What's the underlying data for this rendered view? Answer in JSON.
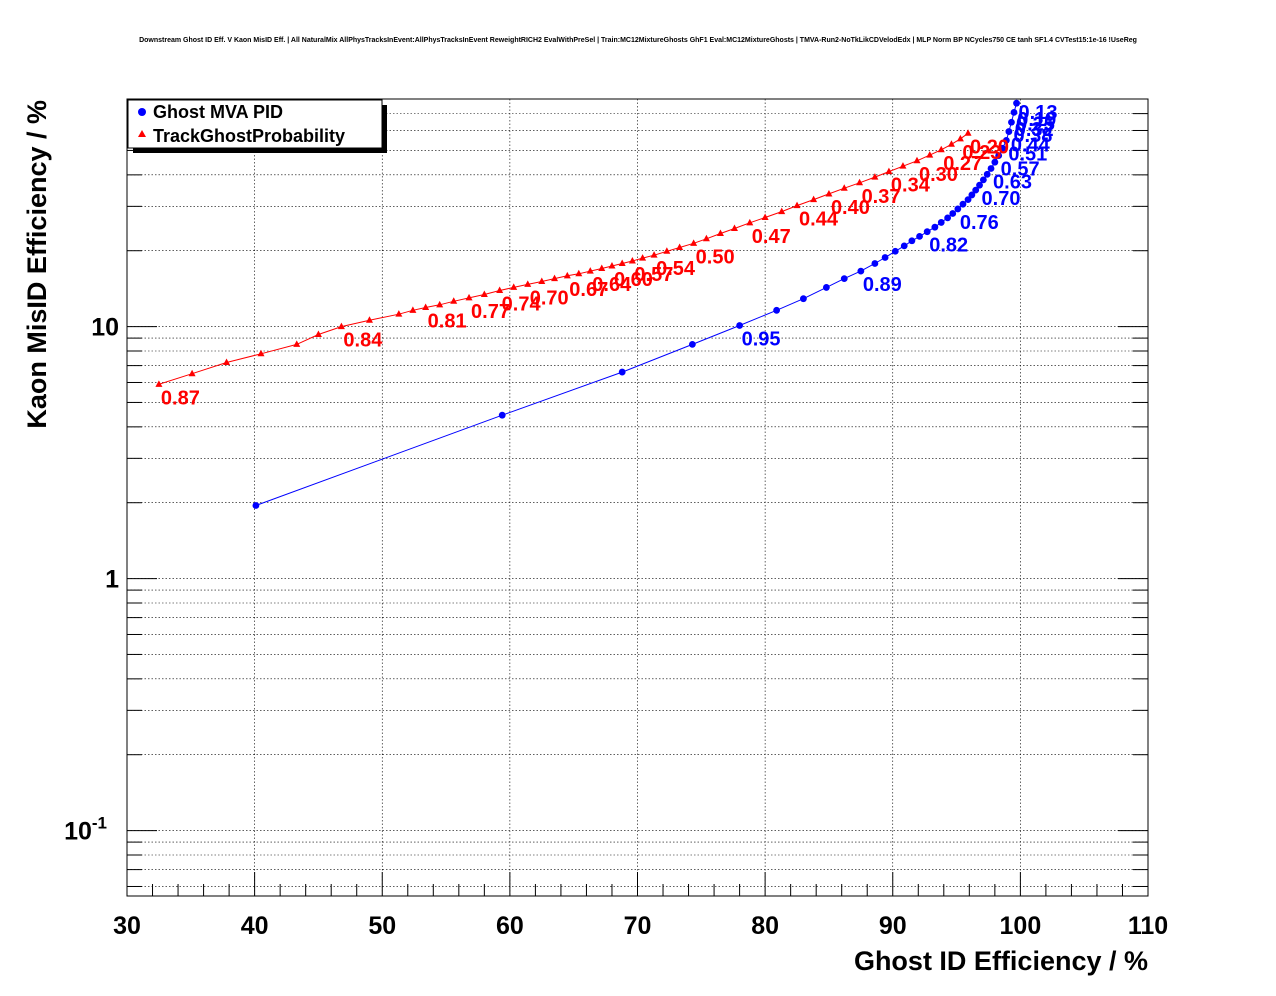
{
  "chart_data": {
    "type": "scatter",
    "title": "Downstream Ghost ID Eff. V Kaon MisID Eff. | All NaturalMix AllPhysTracksInEvent:AllPhysTracksInEvent ReweightRICH2 EvalWithPreSel | Train:MC12MixtureGhosts GhF1 Eval:MC12MixtureGhosts | TMVA-Run2-NoTkLikCDVelodEdx | MLP Norm BP NCycles750 CE tanh SF1.4 CVTest15:1e-16 !UseReg",
    "xlabel": "Ghost ID Efficiency / %",
    "ylabel": "Kaon MisID Efficiency / %",
    "xlim": [
      30,
      110
    ],
    "ylim": [
      0.055,
      80
    ],
    "yscale": "log",
    "grid": true,
    "legend_position": "top-left",
    "x_ticks": [
      "30",
      "40",
      "50",
      "60",
      "70",
      "80",
      "90",
      "100",
      "110"
    ],
    "y_ticks": [
      {
        "value": 0.1,
        "base": "10",
        "exp": "-1"
      },
      {
        "value": 1,
        "base": "1",
        "exp": ""
      },
      {
        "value": 10,
        "base": "10",
        "exp": ""
      }
    ],
    "series": [
      {
        "name": "Ghost MVA PID",
        "color": "#0000ff",
        "marker": "circle",
        "points": [
          [
            40.1,
            1.95
          ],
          [
            59.4,
            4.45
          ],
          [
            68.8,
            6.6
          ],
          [
            74.3,
            8.5
          ],
          [
            78.0,
            10.1
          ],
          [
            80.9,
            11.6
          ],
          [
            83.0,
            12.9
          ],
          [
            84.8,
            14.3
          ],
          [
            86.2,
            15.5
          ],
          [
            87.5,
            16.6
          ],
          [
            88.6,
            17.8
          ],
          [
            89.4,
            18.8
          ],
          [
            90.2,
            19.9
          ],
          [
            90.9,
            20.9
          ],
          [
            91.5,
            21.9
          ],
          [
            92.1,
            22.8
          ],
          [
            92.7,
            23.8
          ],
          [
            93.3,
            24.8
          ],
          [
            93.8,
            25.9
          ],
          [
            94.3,
            27.0
          ],
          [
            94.7,
            28.1
          ],
          [
            95.1,
            29.3
          ],
          [
            95.5,
            30.6
          ],
          [
            95.9,
            31.9
          ],
          [
            96.2,
            33.3
          ],
          [
            96.5,
            34.8
          ],
          [
            96.8,
            36.4
          ],
          [
            97.1,
            38.2
          ],
          [
            97.4,
            40.2
          ],
          [
            97.7,
            42.4
          ],
          [
            98.0,
            44.9
          ],
          [
            98.3,
            47.7
          ],
          [
            98.6,
            51.0
          ],
          [
            98.9,
            54.8
          ],
          [
            99.1,
            59.4
          ],
          [
            99.3,
            64.7
          ],
          [
            99.5,
            70.8
          ],
          [
            99.7,
            77.0
          ]
        ],
        "labels": [
          {
            "text": "0.95",
            "x": 78.0,
            "y": 10.1
          },
          {
            "text": "0.89",
            "x": 87.5,
            "y": 16.6
          },
          {
            "text": "0.82",
            "x": 92.7,
            "y": 23.8
          },
          {
            "text": "0.76",
            "x": 95.1,
            "y": 29.3
          },
          {
            "text": "0.70",
            "x": 96.8,
            "y": 36.4
          },
          {
            "text": "0.63",
            "x": 97.7,
            "y": 42.4
          },
          {
            "text": "0.57",
            "x": 98.3,
            "y": 47.7
          },
          {
            "text": "0.51",
            "x": 98.9,
            "y": 54.8
          },
          {
            "text": "0.44",
            "x": 99.1,
            "y": 59.4
          },
          {
            "text": "0.38",
            "x": 99.3,
            "y": 64.7
          },
          {
            "text": "0.32",
            "x": 99.4,
            "y": 68.5
          },
          {
            "text": "0.25",
            "x": 99.5,
            "y": 72.0
          },
          {
            "text": "0.19",
            "x": 99.6,
            "y": 75.0
          },
          {
            "text": "0.13",
            "x": 99.7,
            "y": 80.0
          }
        ]
      },
      {
        "name": "TrackGhostProbability",
        "color": "#ff0000",
        "marker": "triangle",
        "points": [
          [
            32.5,
            5.9
          ],
          [
            35.1,
            6.5
          ],
          [
            37.8,
            7.2
          ],
          [
            40.5,
            7.8
          ],
          [
            43.3,
            8.5
          ],
          [
            45.0,
            9.3
          ],
          [
            46.8,
            10.0
          ],
          [
            49.0,
            10.6
          ],
          [
            51.3,
            11.2
          ],
          [
            52.4,
            11.6
          ],
          [
            53.4,
            11.9
          ],
          [
            54.5,
            12.2
          ],
          [
            55.6,
            12.6
          ],
          [
            56.8,
            13.0
          ],
          [
            58.0,
            13.4
          ],
          [
            59.2,
            13.9
          ],
          [
            60.3,
            14.3
          ],
          [
            61.4,
            14.7
          ],
          [
            62.5,
            15.1
          ],
          [
            63.5,
            15.5
          ],
          [
            64.5,
            15.9
          ],
          [
            65.4,
            16.2
          ],
          [
            66.3,
            16.6
          ],
          [
            67.2,
            17.0
          ],
          [
            68.0,
            17.4
          ],
          [
            68.8,
            17.8
          ],
          [
            69.6,
            18.2
          ],
          [
            70.4,
            18.7
          ],
          [
            71.3,
            19.2
          ],
          [
            72.3,
            19.9
          ],
          [
            73.3,
            20.6
          ],
          [
            74.4,
            21.4
          ],
          [
            75.4,
            22.3
          ],
          [
            76.5,
            23.4
          ],
          [
            77.6,
            24.5
          ],
          [
            78.8,
            25.8
          ],
          [
            80.0,
            27.1
          ],
          [
            81.3,
            28.6
          ],
          [
            82.5,
            30.2
          ],
          [
            83.8,
            31.9
          ],
          [
            85.0,
            33.6
          ],
          [
            86.2,
            35.4
          ],
          [
            87.4,
            37.2
          ],
          [
            88.6,
            39.2
          ],
          [
            89.7,
            41.2
          ],
          [
            90.8,
            43.3
          ],
          [
            91.9,
            45.5
          ],
          [
            92.9,
            47.9
          ],
          [
            93.8,
            50.3
          ],
          [
            94.6,
            52.9
          ],
          [
            95.3,
            55.6
          ],
          [
            95.9,
            58.5
          ]
        ],
        "labels": [
          {
            "text": "0.87",
            "x": 32.5,
            "y": 5.9
          },
          {
            "text": "0.84",
            "x": 46.8,
            "y": 10.0
          },
          {
            "text": "0.81",
            "x": 53.4,
            "y": 11.9
          },
          {
            "text": "0.77",
            "x": 56.8,
            "y": 13.0
          },
          {
            "text": "0.74",
            "x": 59.2,
            "y": 13.9
          },
          {
            "text": "0.70",
            "x": 61.4,
            "y": 14.7
          },
          {
            "text": "0.67",
            "x": 64.5,
            "y": 15.9
          },
          {
            "text": "0.64",
            "x": 66.3,
            "y": 16.6
          },
          {
            "text": "0.60",
            "x": 68.0,
            "y": 17.4
          },
          {
            "text": "0.57",
            "x": 69.6,
            "y": 18.2
          },
          {
            "text": "0.54",
            "x": 71.3,
            "y": 19.2
          },
          {
            "text": "0.50",
            "x": 74.4,
            "y": 21.4
          },
          {
            "text": "0.47",
            "x": 78.8,
            "y": 25.8
          },
          {
            "text": "0.44",
            "x": 82.5,
            "y": 30.2
          },
          {
            "text": "0.40",
            "x": 85.0,
            "y": 33.6
          },
          {
            "text": "0.37",
            "x": 87.4,
            "y": 37.2
          },
          {
            "text": "0.34",
            "x": 89.7,
            "y": 41.2
          },
          {
            "text": "0.30",
            "x": 91.9,
            "y": 45.5
          },
          {
            "text": "0.27",
            "x": 93.8,
            "y": 50.3
          },
          {
            "text": "0.23",
            "x": 95.3,
            "y": 55.6
          },
          {
            "text": "0.20",
            "x": 95.9,
            "y": 58.5
          }
        ]
      }
    ]
  }
}
